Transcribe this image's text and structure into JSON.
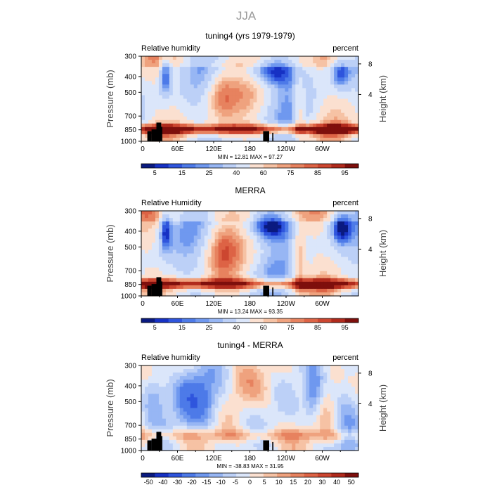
{
  "figure": {
    "main_title": "JJA"
  },
  "chart_data": [
    {
      "type": "heatmap",
      "title": "tuning4 (yrs 1979-1979)",
      "left_label": "Relative humidity",
      "right_label": "percent",
      "ylabel": "Pressure (mb)",
      "ylabel_right": "Height (km)",
      "xticks": [
        "0",
        "60E",
        "120E",
        "180",
        "120W",
        "60W"
      ],
      "yticks": [
        "300",
        "400",
        "500",
        "700",
        "850",
        "1000"
      ],
      "height_ticks": [
        "8",
        "4"
      ],
      "stats": "MIN =   12.81   MAX =   97.27",
      "colorbar_labels": [
        "5",
        "15",
        "25",
        "40",
        "60",
        "75",
        "85",
        "95"
      ],
      "colorbar_colors": [
        "#0a1a80",
        "#1631c4",
        "#2f55dd",
        "#4d7ae8",
        "#6f98ef",
        "#97b6f4",
        "#bcd0f7",
        "#dbe6fa",
        "#fbe0d0",
        "#f6c2a4",
        "#efa27e",
        "#e7825f",
        "#dd6345",
        "#cc4630",
        "#b02a1c",
        "#7e0f0c"
      ],
      "x_range": [
        "0",
        "360"
      ],
      "y_range": [
        1000,
        300
      ],
      "grid": false
    },
    {
      "type": "heatmap",
      "title": "MERRA",
      "left_label": "Relative Humidity",
      "right_label": "percent",
      "ylabel": "Pressure (mb)",
      "ylabel_right": "Height (km)",
      "xticks": [
        "0",
        "60E",
        "120E",
        "180",
        "120W",
        "60W"
      ],
      "yticks": [
        "300",
        "400",
        "500",
        "700",
        "850",
        "1000"
      ],
      "height_ticks": [
        "8",
        "4"
      ],
      "stats": "MIN =   13.24   MAX =   93.35",
      "colorbar_labels": [
        "5",
        "15",
        "25",
        "40",
        "60",
        "75",
        "85",
        "95"
      ],
      "colorbar_colors": [
        "#0a1a80",
        "#1631c4",
        "#2f55dd",
        "#4d7ae8",
        "#6f98ef",
        "#97b6f4",
        "#bcd0f7",
        "#dbe6fa",
        "#fbe0d0",
        "#f6c2a4",
        "#efa27e",
        "#e7825f",
        "#dd6345",
        "#cc4630",
        "#b02a1c",
        "#7e0f0c"
      ],
      "x_range": [
        "0",
        "360"
      ],
      "y_range": [
        1000,
        300
      ],
      "grid": false
    },
    {
      "type": "heatmap",
      "title": "tuning4 - MERRA",
      "left_label": "Relative humidity",
      "right_label": "percent",
      "ylabel": "Pressure (mb)",
      "ylabel_right": "Height (km)",
      "xticks": [
        "0",
        "60E",
        "120E",
        "180",
        "120W",
        "60W"
      ],
      "yticks": [
        "300",
        "400",
        "500",
        "700",
        "850",
        "1000"
      ],
      "height_ticks": [
        "8",
        "4"
      ],
      "stats": "MIN =  -38.83   MAX =   31.95",
      "colorbar_labels": [
        "-50",
        "-40",
        "-30",
        "-20",
        "-15",
        "-10",
        "-5",
        "0",
        "5",
        "10",
        "15",
        "20",
        "30",
        "40",
        "50"
      ],
      "colorbar_colors": [
        "#0a1a80",
        "#1631c4",
        "#2f55dd",
        "#4d7ae8",
        "#6f98ef",
        "#97b6f4",
        "#bcd0f7",
        "#dbe6fa",
        "#fbe0d0",
        "#f6c2a4",
        "#efa27e",
        "#e7825f",
        "#dd6345",
        "#cc4630",
        "#b02a1c",
        "#7e0f0c"
      ],
      "x_range": [
        "0",
        "360"
      ],
      "y_range": [
        1000,
        300
      ],
      "grid": false
    }
  ]
}
